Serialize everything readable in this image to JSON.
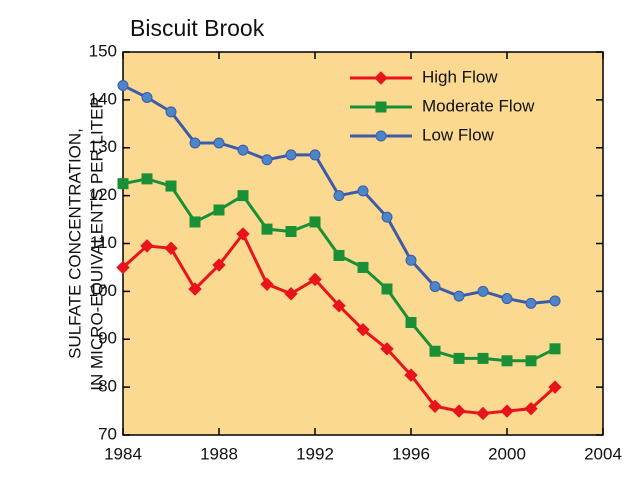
{
  "chart_data": {
    "type": "line",
    "title": "Biscuit Brook",
    "y_label": [
      "SULFATE CONCENTRATION,",
      "IN MICRO-EQUIVALENTS PER LITER"
    ],
    "x": [
      1984,
      1985,
      1986,
      1987,
      1988,
      1989,
      1990,
      1991,
      1992,
      1993,
      1994,
      1995,
      1996,
      1997,
      1998,
      1999,
      2000,
      2001,
      2002
    ],
    "series": [
      {
        "name": "High Flow",
        "color": "#e8141b",
        "marker": "diamond",
        "marker_color": "#e8141b",
        "values": [
          105,
          109.5,
          109,
          100.5,
          105.5,
          112,
          101.5,
          99.5,
          102.5,
          97,
          92,
          88,
          82.5,
          76,
          75,
          74.5,
          75,
          75.5,
          80
        ]
      },
      {
        "name": "Moderate Flow",
        "color": "#199035",
        "marker": "square",
        "marker_color": "#199035",
        "values": [
          122.5,
          123.5,
          122,
          114.5,
          117,
          120,
          113,
          112.5,
          114.5,
          107.5,
          105,
          100.5,
          93.5,
          87.5,
          86,
          86,
          85.5,
          85.5,
          88
        ]
      },
      {
        "name": "Low Flow",
        "color": "#3d5ba8",
        "marker": "circle",
        "marker_color": "#4a86c8",
        "values": [
          143,
          140.5,
          137.5,
          131,
          131,
          129.5,
          127.5,
          128.5,
          128.5,
          120,
          121,
          115.5,
          106.5,
          101,
          99,
          100,
          98.5,
          97.5,
          98
        ]
      }
    ],
    "xlim": [
      1984,
      2004
    ],
    "xticks": [
      1984,
      1988,
      1992,
      1996,
      2000,
      2004
    ],
    "ylim": [
      70,
      150
    ],
    "yticks": [
      70,
      80,
      90,
      100,
      110,
      120,
      130,
      140,
      150
    ],
    "background": "#fbd990",
    "legend": "upper right"
  }
}
